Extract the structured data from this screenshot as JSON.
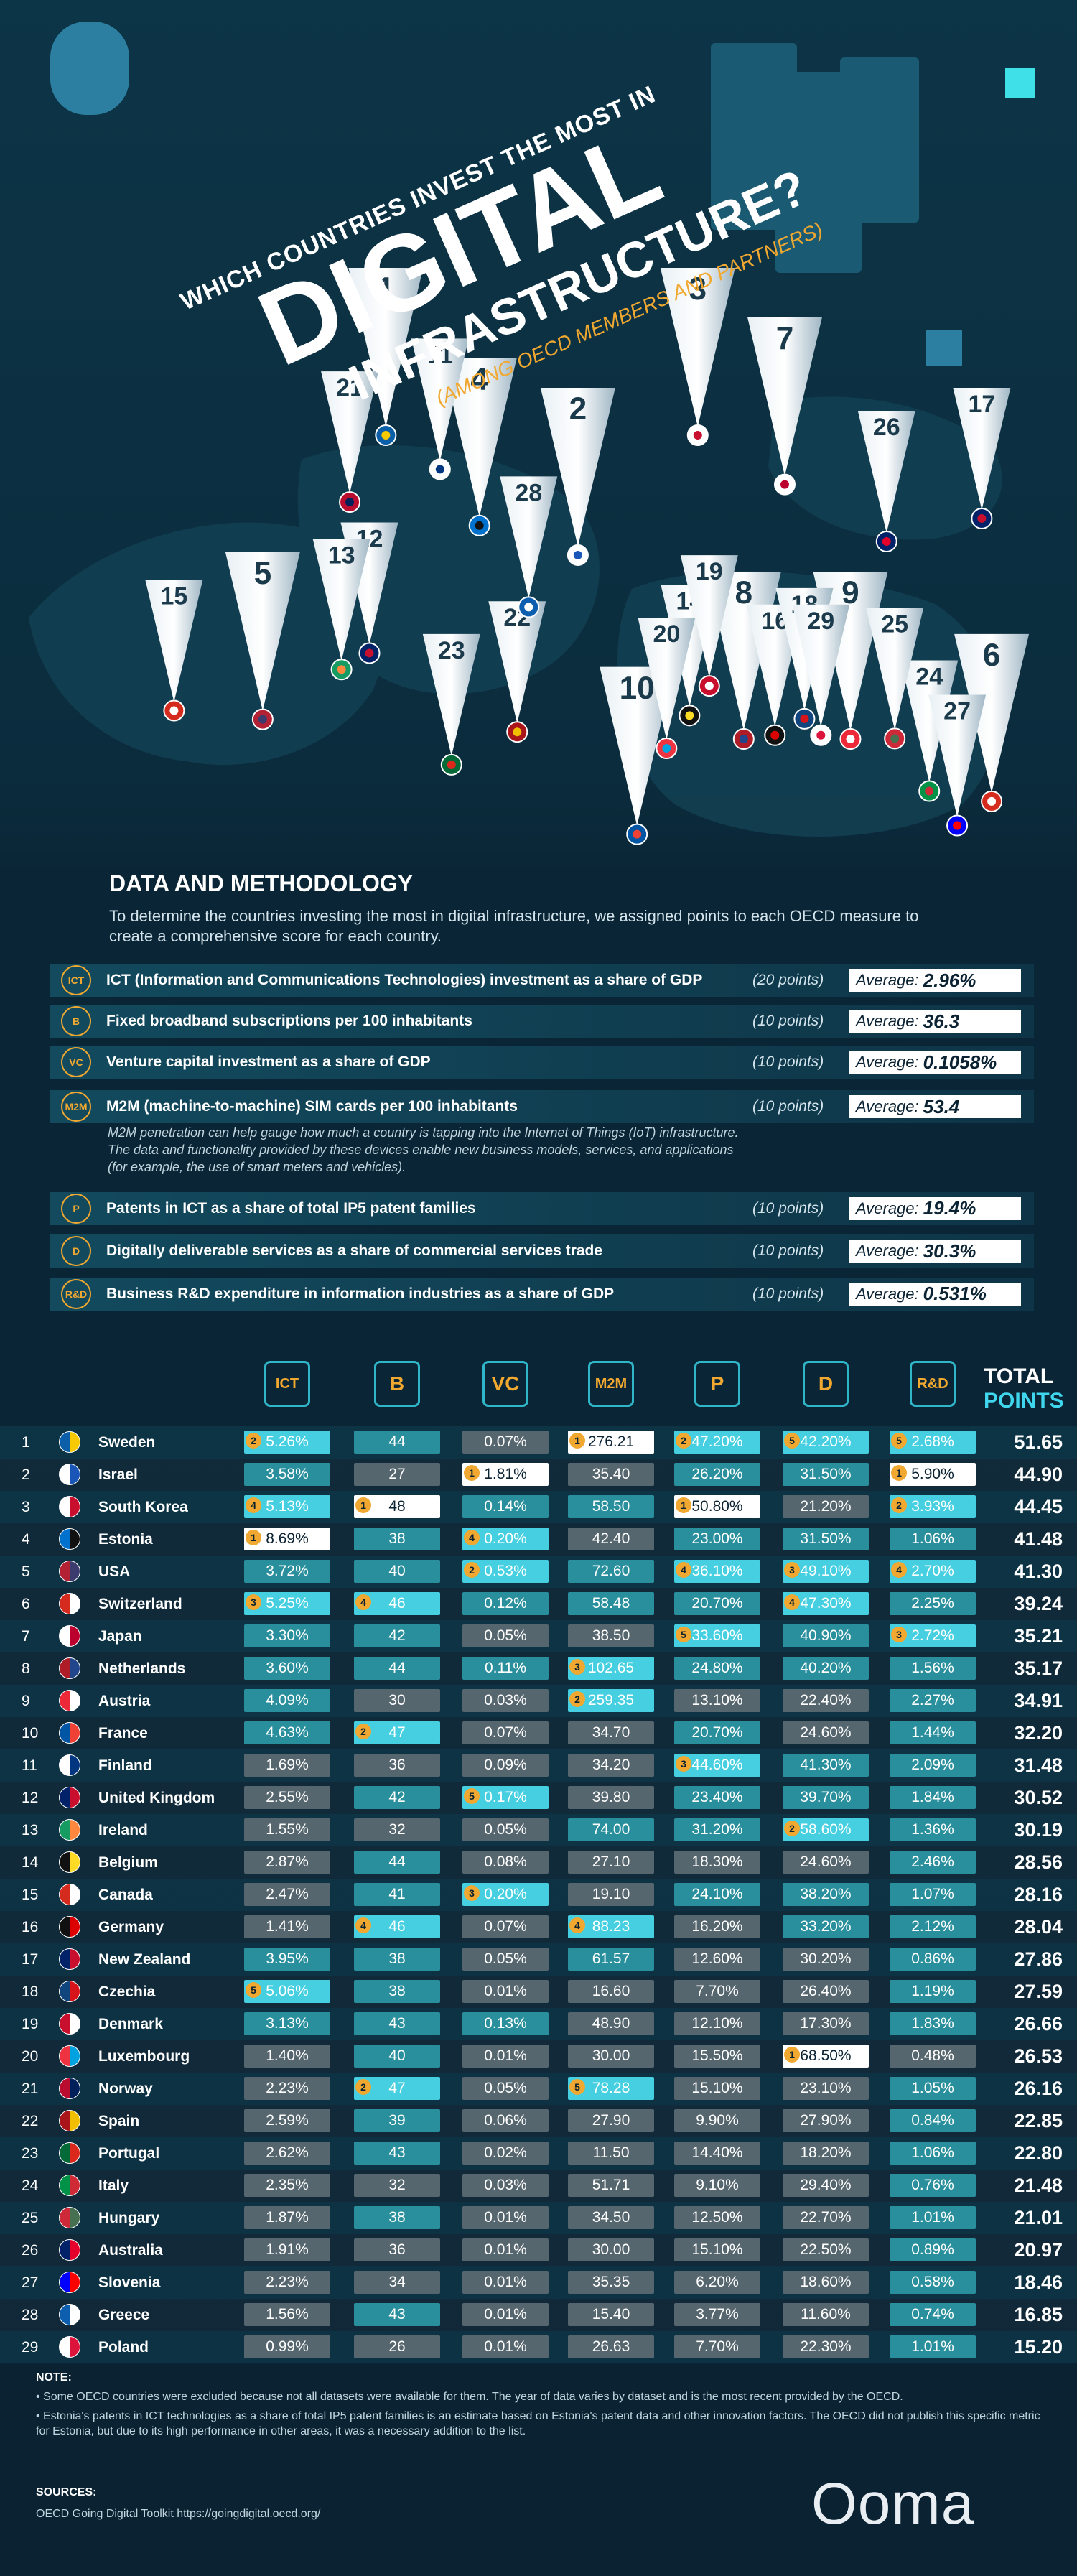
{
  "header": {
    "kicker": "WHICH COUNTRIES INVEST THE MOST IN",
    "title": "DIGITAL",
    "title2": "INFRASTRUCTURE?",
    "subtitle": "(AMONG OECD MEMBERS AND PARTNERS)"
  },
  "methodology": {
    "title": "DATA AND METHODOLOGY",
    "intro": "To determine the countries investing the most in digital infrastructure, we assigned points to each OECD measure to create a comprehensive score for each country.",
    "average_label": "Average:",
    "measures": [
      {
        "icon": "ICT",
        "text": "ICT (Information and Communications Technologies) investment as a share of GDP",
        "points": "(20 points)",
        "average": "2.96%"
      },
      {
        "icon": "B",
        "text": "Fixed broadband subscriptions per 100 inhabitants",
        "points": "(10 points)",
        "average": "36.3"
      },
      {
        "icon": "VC",
        "text": "Venture capital investment as a share of GDP",
        "points": "(10 points)",
        "average": "0.1058%"
      },
      {
        "icon": "M2M",
        "text": "M2M (machine-to-machine) SIM cards per 100 inhabitants",
        "points": "(10 points)",
        "average": "53.4",
        "description": "M2M penetration can help gauge how much a country is tapping into the Internet of Things (IoT) infrastructure. The data and functionality provided by these devices enable new business models, services, and applications (for example, the use of smart meters and vehicles)."
      },
      {
        "icon": "P",
        "text": "Patents in ICT as a share of total IP5 patent families",
        "points": "(10 points)",
        "average": "19.4%"
      },
      {
        "icon": "D",
        "text": "Digitally deliverable services as a share of commercial services trade",
        "points": "(10 points)",
        "average": "30.3%"
      },
      {
        "icon": "R&D",
        "text": "Business R&D expenditure in information industries as a share of GDP",
        "points": "(10 points)",
        "average": "0.531%"
      }
    ]
  },
  "table": {
    "total_header": "TOTAL",
    "total_header2": "POINTS",
    "rows": [
      {
        "rank": 1,
        "country": "Sweden",
        "cells": [
          "5.26%",
          "44",
          "0.07%",
          "276.21",
          "47.20%",
          "42.20%",
          "2.68%"
        ],
        "badges": [
          2,
          null,
          null,
          1,
          2,
          5,
          5
        ],
        "total": "51.65"
      },
      {
        "rank": 2,
        "country": "Israel",
        "cells": [
          "3.58%",
          "27",
          "1.81%",
          "35.40",
          "26.20%",
          "31.50%",
          "5.90%"
        ],
        "badges": [
          null,
          null,
          1,
          null,
          null,
          null,
          1
        ],
        "total": "44.90"
      },
      {
        "rank": 3,
        "country": "South Korea",
        "cells": [
          "5.13%",
          "48",
          "0.14%",
          "58.50",
          "50.80%",
          "21.20%",
          "3.93%"
        ],
        "badges": [
          4,
          1,
          null,
          null,
          1,
          null,
          2
        ],
        "total": "44.45"
      },
      {
        "rank": 4,
        "country": "Estonia",
        "cells": [
          "8.69%",
          "38",
          "0.20%",
          "42.40",
          "23.00%",
          "31.50%",
          "1.06%"
        ],
        "badges": [
          1,
          null,
          4,
          null,
          null,
          null,
          null
        ],
        "total": "41.48"
      },
      {
        "rank": 5,
        "country": "USA",
        "cells": [
          "3.72%",
          "40",
          "0.53%",
          "72.60",
          "36.10%",
          "49.10%",
          "2.70%"
        ],
        "badges": [
          null,
          null,
          2,
          null,
          4,
          3,
          4
        ],
        "total": "41.30"
      },
      {
        "rank": 6,
        "country": "Switzerland",
        "cells": [
          "5.25%",
          "46",
          "0.12%",
          "58.48",
          "20.70%",
          "47.30%",
          "2.25%"
        ],
        "badges": [
          3,
          4,
          null,
          null,
          null,
          4,
          null
        ],
        "total": "39.24"
      },
      {
        "rank": 7,
        "country": "Japan",
        "cells": [
          "3.30%",
          "42",
          "0.05%",
          "38.50",
          "33.60%",
          "40.90%",
          "2.72%"
        ],
        "badges": [
          null,
          null,
          null,
          null,
          5,
          null,
          3
        ],
        "total": "35.21"
      },
      {
        "rank": 8,
        "country": "Netherlands",
        "cells": [
          "3.60%",
          "44",
          "0.11%",
          "102.65",
          "24.80%",
          "40.20%",
          "1.56%"
        ],
        "badges": [
          null,
          null,
          null,
          3,
          null,
          null,
          null
        ],
        "total": "35.17"
      },
      {
        "rank": 9,
        "country": "Austria",
        "cells": [
          "4.09%",
          "30",
          "0.03%",
          "259.35",
          "13.10%",
          "22.40%",
          "2.27%"
        ],
        "badges": [
          null,
          null,
          null,
          2,
          null,
          null,
          null
        ],
        "total": "34.91"
      },
      {
        "rank": 10,
        "country": "France",
        "cells": [
          "4.63%",
          "47",
          "0.07%",
          "34.70",
          "20.70%",
          "24.60%",
          "1.44%"
        ],
        "badges": [
          null,
          2,
          null,
          null,
          null,
          null,
          null
        ],
        "total": "32.20"
      },
      {
        "rank": 11,
        "country": "Finland",
        "cells": [
          "1.69%",
          "36",
          "0.09%",
          "34.20",
          "44.60%",
          "41.30%",
          "2.09%"
        ],
        "badges": [
          null,
          null,
          null,
          null,
          3,
          null,
          null
        ],
        "total": "31.48"
      },
      {
        "rank": 12,
        "country": "United Kingdom",
        "cells": [
          "2.55%",
          "42",
          "0.17%",
          "39.80",
          "23.40%",
          "39.70%",
          "1.84%"
        ],
        "badges": [
          null,
          null,
          5,
          null,
          null,
          null,
          null
        ],
        "total": "30.52"
      },
      {
        "rank": 13,
        "country": "Ireland",
        "cells": [
          "1.55%",
          "32",
          "0.05%",
          "74.00",
          "31.20%",
          "58.60%",
          "1.36%"
        ],
        "badges": [
          null,
          null,
          null,
          null,
          null,
          2,
          null
        ],
        "total": "30.19"
      },
      {
        "rank": 14,
        "country": "Belgium",
        "cells": [
          "2.87%",
          "44",
          "0.08%",
          "27.10",
          "18.30%",
          "24.60%",
          "2.46%"
        ],
        "badges": [
          null,
          null,
          null,
          null,
          null,
          null,
          null
        ],
        "total": "28.56"
      },
      {
        "rank": 15,
        "country": "Canada",
        "cells": [
          "2.47%",
          "41",
          "0.20%",
          "19.10",
          "24.10%",
          "38.20%",
          "1.07%"
        ],
        "badges": [
          null,
          null,
          3,
          null,
          null,
          null,
          null
        ],
        "total": "28.16"
      },
      {
        "rank": 16,
        "country": "Germany",
        "cells": [
          "1.41%",
          "46",
          "0.07%",
          "88.23",
          "16.20%",
          "33.20%",
          "2.12%"
        ],
        "badges": [
          null,
          4,
          null,
          4,
          null,
          null,
          null
        ],
        "total": "28.04"
      },
      {
        "rank": 17,
        "country": "New Zealand",
        "cells": [
          "3.95%",
          "38",
          "0.05%",
          "61.57",
          "12.60%",
          "30.20%",
          "0.86%"
        ],
        "badges": [
          null,
          null,
          null,
          null,
          null,
          null,
          null
        ],
        "total": "27.86"
      },
      {
        "rank": 18,
        "country": "Czechia",
        "cells": [
          "5.06%",
          "38",
          "0.01%",
          "16.60",
          "7.70%",
          "26.40%",
          "1.19%"
        ],
        "badges": [
          5,
          null,
          null,
          null,
          null,
          null,
          null
        ],
        "total": "27.59"
      },
      {
        "rank": 19,
        "country": "Denmark",
        "cells": [
          "3.13%",
          "43",
          "0.13%",
          "48.90",
          "12.10%",
          "17.30%",
          "1.83%"
        ],
        "badges": [
          null,
          null,
          null,
          null,
          null,
          null,
          null
        ],
        "total": "26.66"
      },
      {
        "rank": 20,
        "country": "Luxembourg",
        "cells": [
          "1.40%",
          "40",
          "0.01%",
          "30.00",
          "15.50%",
          "68.50%",
          "0.48%"
        ],
        "badges": [
          null,
          null,
          null,
          null,
          null,
          1,
          null
        ],
        "total": "26.53"
      },
      {
        "rank": 21,
        "country": "Norway",
        "cells": [
          "2.23%",
          "47",
          "0.05%",
          "78.28",
          "15.10%",
          "23.10%",
          "1.05%"
        ],
        "badges": [
          null,
          2,
          null,
          5,
          null,
          null,
          null
        ],
        "total": "26.16"
      },
      {
        "rank": 22,
        "country": "Spain",
        "cells": [
          "2.59%",
          "39",
          "0.06%",
          "27.90",
          "9.90%",
          "27.90%",
          "0.84%"
        ],
        "badges": [
          null,
          null,
          null,
          null,
          null,
          null,
          null
        ],
        "total": "22.85"
      },
      {
        "rank": 23,
        "country": "Portugal",
        "cells": [
          "2.62%",
          "43",
          "0.02%",
          "11.50",
          "14.40%",
          "18.20%",
          "1.06%"
        ],
        "badges": [
          null,
          null,
          null,
          null,
          null,
          null,
          null
        ],
        "total": "22.80"
      },
      {
        "rank": 24,
        "country": "Italy",
        "cells": [
          "2.35%",
          "32",
          "0.03%",
          "51.71",
          "9.10%",
          "29.40%",
          "0.76%"
        ],
        "badges": [
          null,
          null,
          null,
          null,
          null,
          null,
          null
        ],
        "total": "21.48"
      },
      {
        "rank": 25,
        "country": "Hungary",
        "cells": [
          "1.87%",
          "38",
          "0.01%",
          "34.50",
          "12.50%",
          "22.70%",
          "1.01%"
        ],
        "badges": [
          null,
          null,
          null,
          null,
          null,
          null,
          null
        ],
        "total": "21.01"
      },
      {
        "rank": 26,
        "country": "Australia",
        "cells": [
          "1.91%",
          "36",
          "0.01%",
          "30.00",
          "15.10%",
          "22.50%",
          "0.89%"
        ],
        "badges": [
          null,
          null,
          null,
          null,
          null,
          null,
          null
        ],
        "total": "20.97"
      },
      {
        "rank": 27,
        "country": "Slovenia",
        "cells": [
          "2.23%",
          "34",
          "0.01%",
          "35.35",
          "6.20%",
          "18.60%",
          "0.58%"
        ],
        "badges": [
          null,
          null,
          null,
          null,
          null,
          null,
          null
        ],
        "total": "18.46"
      },
      {
        "rank": 28,
        "country": "Greece",
        "cells": [
          "1.56%",
          "43",
          "0.01%",
          "15.40",
          "3.77%",
          "11.60%",
          "0.74%"
        ],
        "badges": [
          null,
          null,
          null,
          null,
          null,
          null,
          null
        ],
        "total": "16.85"
      },
      {
        "rank": 29,
        "country": "Poland",
        "cells": [
          "0.99%",
          "26",
          "0.01%",
          "26.63",
          "7.70%",
          "22.30%",
          "1.01%"
        ],
        "badges": [
          null,
          null,
          null,
          null,
          null,
          null,
          null
        ],
        "total": "15.20"
      }
    ]
  },
  "note": {
    "title": "NOTE:",
    "items": [
      "Some OECD countries were excluded because not all datasets were available for them. The year of data varies by dataset and is the most recent provided by the OECD.",
      "Estonia's patents in ICT technologies as a share of total IP5 patent families is an estimate based on Estonia's patent data and other innovation factors. The OECD did not publish this specific metric for Estonia, but due to its high performance in other areas, it was a necessary addition to the list."
    ]
  },
  "sources": {
    "title": "SOURCES:",
    "text": "OECD Going Digital Toolkit https://goingdigital.oecd.org/"
  },
  "brand": "Ooma"
}
